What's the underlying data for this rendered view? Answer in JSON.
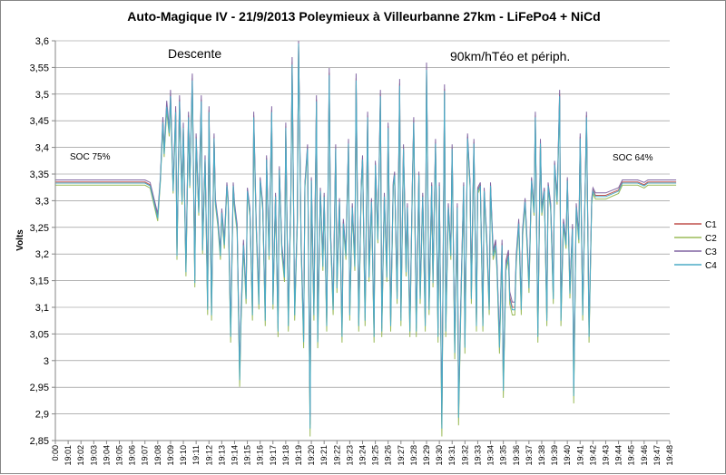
{
  "chart_data": {
    "type": "line",
    "title": "Auto-Magique  IV - 21/9/2013 Poleymieux à Villeurbanne  27km - LiFePo4 + NiCd",
    "ylabel": "Volts",
    "xlabel": "",
    "ylim": [
      2.85,
      3.6
    ],
    "ytick_labels": [
      "2,85",
      "2,9",
      "2,95",
      "3",
      "3,05",
      "3,1",
      "3,15",
      "3,2",
      "3,25",
      "3,3",
      "3,35",
      "3,4",
      "3,45",
      "3,5",
      "3,55",
      "3,6"
    ],
    "x_labels": [
      "0:00",
      "19:01",
      "19:02",
      "19:03",
      "19:04",
      "19:05",
      "19:06",
      "19:07",
      "19:08",
      "19:09",
      "19:10",
      "19:11",
      "19:12",
      "19:13",
      "19:14",
      "19:15",
      "19:16",
      "19:17",
      "19:18",
      "19:19",
      "19:20",
      "19:21",
      "19:22",
      "19:23",
      "19:24",
      "19:25",
      "19:26",
      "19:27",
      "19:28",
      "19:29",
      "19:30",
      "19:31",
      "19:32",
      "19:33",
      "19:34",
      "19:35",
      "19:36",
      "19:37",
      "19:38",
      "19:39",
      "19:40",
      "19:41",
      "19:42",
      "19:43",
      "19:44",
      "19:45",
      "19:46",
      "19:47",
      "19:48"
    ],
    "grid": "horizontal",
    "legend_position": "right",
    "annotations": [
      {
        "id": "soc75",
        "text": "SOC 75%"
      },
      {
        "id": "descente",
        "text": "Descente"
      },
      {
        "id": "speed",
        "text": "90km/hTéo et périph."
      },
      {
        "id": "soc64",
        "text": "SOC 64%"
      }
    ],
    "series": [
      {
        "name": "C1",
        "color": "#c0504d",
        "offset": 0.0
      },
      {
        "name": "C2",
        "color": "#9bbb59",
        "offset": -0.006
      },
      {
        "name": "C3",
        "color": "#8064a2",
        "offset": 0.004
      },
      {
        "name": "C4",
        "color": "#4bacc6",
        "offset": -0.002
      }
    ],
    "base_curve": {
      "x": [
        0,
        1,
        2,
        3,
        4,
        5,
        6,
        7,
        7.4,
        7.7,
        8.0,
        8.2,
        8.4,
        8.5,
        8.7,
        8.9,
        9.0,
        9.2,
        9.4,
        9.5,
        9.7,
        9.9,
        10.0,
        10.2,
        10.4,
        10.5,
        10.7,
        10.9,
        11.0,
        11.2,
        11.4,
        11.5,
        11.7,
        11.9,
        12.0,
        12.2,
        12.4,
        12.5,
        12.7,
        12.9,
        13.0,
        13.2,
        13.4,
        13.5,
        13.7,
        13.9,
        14.0,
        14.2,
        14.4,
        14.5,
        14.7,
        14.9,
        15.0,
        15.2,
        15.4,
        15.5,
        15.7,
        15.9,
        16.0,
        16.2,
        16.4,
        16.5,
        16.7,
        16.9,
        17.0,
        17.2,
        17.4,
        17.5,
        17.7,
        17.9,
        18.0,
        18.2,
        18.4,
        18.5,
        18.7,
        18.9,
        19.0,
        19.2,
        19.4,
        19.5,
        19.7,
        19.9,
        20.0,
        20.2,
        20.4,
        20.5,
        20.7,
        20.9,
        21.0,
        21.2,
        21.4,
        21.5,
        21.7,
        21.9,
        22.0,
        22.2,
        22.4,
        22.5,
        22.7,
        22.9,
        23.0,
        23.2,
        23.4,
        23.5,
        23.7,
        23.9,
        24.0,
        24.2,
        24.4,
        24.5,
        24.7,
        24.9,
        25.0,
        25.2,
        25.4,
        25.5,
        25.7,
        25.9,
        26.0,
        26.2,
        26.4,
        26.5,
        26.7,
        26.9,
        27.0,
        27.2,
        27.4,
        27.5,
        27.7,
        27.9,
        28.0,
        28.2,
        28.4,
        28.5,
        28.7,
        28.9,
        29.0,
        29.2,
        29.4,
        29.5,
        29.7,
        29.9,
        30.0,
        30.2,
        30.4,
        30.5,
        30.7,
        30.9,
        31.0,
        31.2,
        31.4,
        31.5,
        31.7,
        31.9,
        32.0,
        32.2,
        32.4,
        32.5,
        32.7,
        32.9,
        33.0,
        33.2,
        33.4,
        33.5,
        33.7,
        33.9,
        34.0,
        34.2,
        34.4,
        34.5,
        34.7,
        34.9,
        35.0,
        35.2,
        35.4,
        35.5,
        35.7,
        35.9,
        36.0,
        36.2,
        36.4,
        36.5,
        36.7,
        36.9,
        37.0,
        37.2,
        37.4,
        37.5,
        37.7,
        37.9,
        38.0,
        38.2,
        38.4,
        38.5,
        38.7,
        38.9,
        39.0,
        39.2,
        39.4,
        39.5,
        39.7,
        39.9,
        40.0,
        40.2,
        40.4,
        40.5,
        40.7,
        40.9,
        41.0,
        41.2,
        41.4,
        41.5,
        41.7,
        41.9,
        42.0,
        42.2,
        42.5,
        43.0,
        43.5,
        44.0,
        44.3,
        44.8,
        45.0,
        45.5,
        46.0,
        46.3,
        46.8,
        47.0,
        47.5,
        48.0,
        48.5
      ],
      "y": [
        3.335,
        3.335,
        3.335,
        3.335,
        3.335,
        3.335,
        3.335,
        3.335,
        3.33,
        3.3,
        3.27,
        3.34,
        3.45,
        3.39,
        3.48,
        3.43,
        3.5,
        3.32,
        3.47,
        3.2,
        3.49,
        3.3,
        3.44,
        3.17,
        3.46,
        3.33,
        3.53,
        3.15,
        3.42,
        3.28,
        3.49,
        3.21,
        3.38,
        3.1,
        3.47,
        3.09,
        3.42,
        3.3,
        3.26,
        3.2,
        3.28,
        3.22,
        3.33,
        3.3,
        3.05,
        3.33,
        3.29,
        3.25,
        2.97,
        3.08,
        3.22,
        3.12,
        3.32,
        3.28,
        3.09,
        3.46,
        3.25,
        3.11,
        3.34,
        3.29,
        3.08,
        3.38,
        3.2,
        3.47,
        3.11,
        3.31,
        3.06,
        3.36,
        3.21,
        3.16,
        3.44,
        3.07,
        3.31,
        3.56,
        3.09,
        3.26,
        3.6,
        3.22,
        3.04,
        3.33,
        3.4,
        2.88,
        3.34,
        3.09,
        3.49,
        3.04,
        3.32,
        3.18,
        3.31,
        3.07,
        3.54,
        3.24,
        3.1,
        3.4,
        3.14,
        3.3,
        3.05,
        3.26,
        3.2,
        3.41,
        3.09,
        3.29,
        3.18,
        3.53,
        3.07,
        3.33,
        3.38,
        3.08,
        3.46,
        3.16,
        3.3,
        3.05,
        3.37,
        3.23,
        3.5,
        3.06,
        3.31,
        3.16,
        3.44,
        3.07,
        3.33,
        3.35,
        3.12,
        3.52,
        3.08,
        3.4,
        3.17,
        3.29,
        3.06,
        3.34,
        3.45,
        3.06,
        3.35,
        3.12,
        3.31,
        3.07,
        3.55,
        3.1,
        3.33,
        3.15,
        3.41,
        3.05,
        3.33,
        2.88,
        3.51,
        3.06,
        3.29,
        3.2,
        3.4,
        3.02,
        3.29,
        2.9,
        3.13,
        3.33,
        3.03,
        3.42,
        3.33,
        3.12,
        3.41,
        3.07,
        3.32,
        3.33,
        3.07,
        3.32,
        3.23,
        3.1,
        3.33,
        3.2,
        3.22,
        3.18,
        3.03,
        3.22,
        2.95,
        3.18,
        3.2,
        3.12,
        3.1,
        3.1,
        3.19,
        3.26,
        3.1,
        3.24,
        3.3,
        3.2,
        3.14,
        3.34,
        3.28,
        3.46,
        3.05,
        3.41,
        3.28,
        3.32,
        3.08,
        3.33,
        3.29,
        3.12,
        3.37,
        3.3,
        3.5,
        3.08,
        3.26,
        3.22,
        3.34,
        3.13,
        3.25,
        2.94,
        3.29,
        3.23,
        3.42,
        3.09,
        3.33,
        3.46,
        3.05,
        3.3,
        3.32,
        3.31,
        3.31,
        3.31,
        3.315,
        3.32,
        3.335,
        3.335,
        3.335,
        3.335,
        3.33,
        3.335,
        3.335,
        3.335,
        3.335,
        3.335,
        3.335
      ]
    }
  }
}
